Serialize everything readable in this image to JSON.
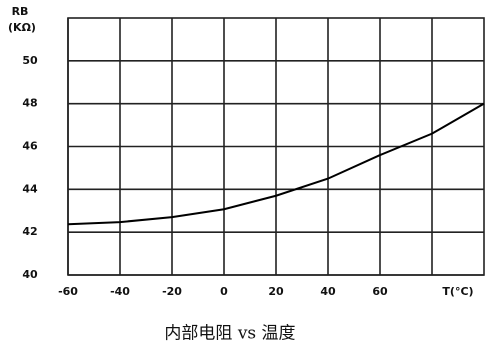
{
  "chart_data": {
    "type": "line",
    "title": "内部电阻 vs 温度",
    "y_label_line1": "RB",
    "y_label_line2": "(KΩ)",
    "x_label": "T(°C)",
    "x": [
      -60,
      -40,
      -20,
      0,
      20,
      40,
      60,
      80,
      100
    ],
    "series": [
      {
        "name": "RB",
        "color": "#000000",
        "values": [
          42.37,
          42.47,
          42.7,
          43.07,
          43.7,
          44.5,
          45.6,
          46.6,
          48.0
        ]
      }
    ],
    "xlim": [
      -60,
      100
    ],
    "xticks": [
      -60,
      -40,
      -20,
      0,
      20,
      40,
      60
    ],
    "ylim": [
      40,
      52
    ],
    "yticks": [
      40,
      42,
      44,
      46,
      48,
      50
    ],
    "grid": true
  }
}
